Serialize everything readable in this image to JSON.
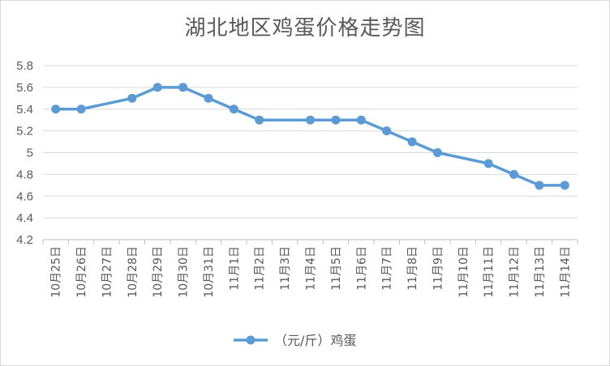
{
  "chart_data": {
    "type": "line",
    "title": "湖北地区鸡蛋价格走势图",
    "categories": [
      "10月25日",
      "10月26日",
      "10月27日",
      "10月28日",
      "10月29日",
      "10月30日",
      "10月31日",
      "11月1日",
      "11月2日",
      "11月3日",
      "11月4日",
      "11月5日",
      "11月6日",
      "11月7日",
      "11月8日",
      "11月9日",
      "11月10日",
      "11月11日",
      "11月12日",
      "11月13日",
      "11月14日"
    ],
    "series": [
      {
        "name": "（元/斤）鸡蛋",
        "color": "#5b9bd5",
        "values": [
          5.4,
          5.4,
          null,
          5.5,
          5.6,
          5.6,
          5.5,
          5.4,
          5.3,
          null,
          5.3,
          5.3,
          5.3,
          5.2,
          5.1,
          5.0,
          null,
          4.9,
          4.8,
          4.7,
          4.7
        ]
      }
    ],
    "ylim": [
      4.2,
      5.8
    ],
    "yticks": [
      "4.2",
      "4.4",
      "4.6",
      "4.8",
      "5",
      "5.2",
      "5.4",
      "5.6",
      "5.8"
    ],
    "grid": true,
    "legend": "bottom"
  }
}
